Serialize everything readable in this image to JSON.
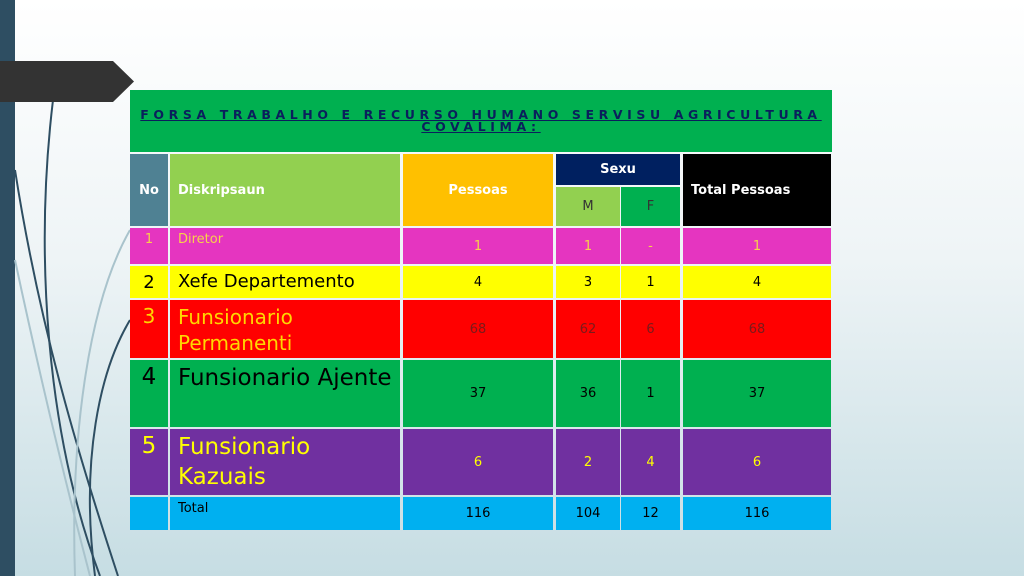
{
  "title": "FORSA TRABALHO E RECURSO HUMANO SERVISU AGRICULTURA COVALIMA:",
  "headers": {
    "no": "No",
    "desc": "Diskripsaun",
    "pessoas": "Pessoas",
    "sexu": "Sexu",
    "m": "M",
    "f": "F",
    "total": "Total Pessoas"
  },
  "colors": {
    "title_bg": "#00b050",
    "no_bg": "#4f8193",
    "desc_bg": "#92d050",
    "pessoas_bg": "#ffc000",
    "sexu_bg": "#002060",
    "m_bg": "#92d050",
    "f_bg": "#00b050",
    "total_bg": "#000000"
  },
  "rows": [
    {
      "no": "1",
      "desc": "Diretor",
      "pessoas": "1",
      "m": "1",
      "f": "-",
      "total": "1",
      "bg": "#e535c0",
      "fg": "#f7d14a"
    },
    {
      "no": "2",
      "desc": "Xefe Departemento",
      "pessoas": "4",
      "m": "3",
      "f": "1",
      "total": "4",
      "bg": "#ffff00",
      "fg": "#000000"
    },
    {
      "no": "3",
      "desc": "Funsionario Permanenti",
      "pessoas": "68",
      "m": "62",
      "f": "6",
      "total": "68",
      "bg": "#ff0000",
      "fg": "#ffd700",
      "numfg": "#7a1a1a"
    },
    {
      "no": "4",
      "desc": "Funsionario Ajente",
      "pessoas": "37",
      "m": "36",
      "f": "1",
      "total": "37",
      "bg": "#00b050",
      "fg": "#000000"
    },
    {
      "no": "5",
      "desc": "Funsionario Kazuais",
      "pessoas": "6",
      "m": "2",
      "f": "4",
      "total": "6",
      "bg": "#7030a0",
      "fg": "#ffff00"
    }
  ],
  "total_row": {
    "no": "",
    "desc": "Total",
    "pessoas": "116",
    "m": "104",
    "f": "12",
    "total": "116",
    "bg": "#00b0f0",
    "fg": "#000000"
  }
}
